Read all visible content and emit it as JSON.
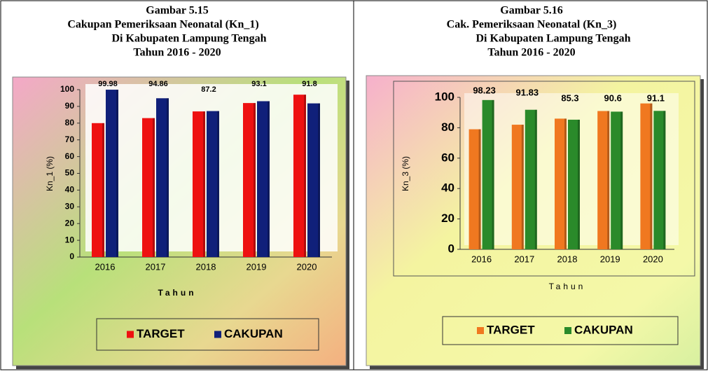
{
  "chart_data": [
    {
      "type": "bar",
      "title": [
        "Gambar 5.15",
        "Cakupan Pemeriksaan Neonatal  (Kn_1)",
        "Di Kabupaten Lampung Tengah",
        "Tahun 2016 - 2020"
      ],
      "categories": [
        "2016",
        "2017",
        "2018",
        "2019",
        "2020"
      ],
      "series": [
        {
          "name": "TARGET",
          "color": "#ee1111",
          "values": [
            80,
            83,
            87,
            92,
            97
          ]
        },
        {
          "name": "CAKUPAN",
          "color": "#10207a",
          "values": [
            99.98,
            94.86,
            87.2,
            93.1,
            91.8
          ]
        }
      ],
      "label_series": 1,
      "ylim": [
        0,
        100
      ],
      "yticks": [
        0,
        10,
        20,
        30,
        40,
        50,
        60,
        70,
        80,
        90,
        100
      ],
      "y_label": "Kn_1 (%)",
      "x_label": "Tahun"
    },
    {
      "type": "bar",
      "title": [
        "Gambar 5.16",
        "Cak. Pemeriksaan Neonatal  (Kn_3)",
        "Di Kabupaten Lampung Tengah",
        "Tahun 2016 - 2020"
      ],
      "categories": [
        "2016",
        "2017",
        "2018",
        "2019",
        "2020"
      ],
      "series": [
        {
          "name": "TARGET",
          "color": "#f07820",
          "values": [
            79,
            82,
            86,
            91,
            96
          ]
        },
        {
          "name": "CAKUPAN",
          "color": "#2a8a2a",
          "values": [
            98.23,
            91.83,
            85.3,
            90.6,
            91.1
          ]
        }
      ],
      "label_series": 1,
      "ylim": [
        0,
        100
      ],
      "yticks": [
        0,
        20,
        40,
        60,
        80,
        100
      ],
      "y_label": "Kn_3 (%)",
      "x_label": "Tahun"
    }
  ]
}
